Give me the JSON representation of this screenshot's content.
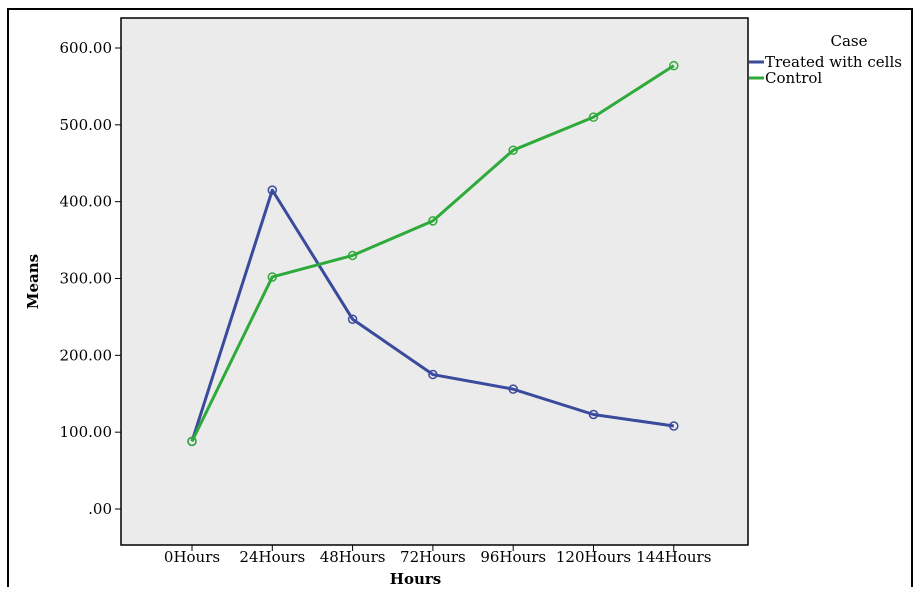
{
  "chart_data": {
    "type": "line",
    "title": "",
    "xlabel": "Hours",
    "ylabel": "Means",
    "categories": [
      "0Hours",
      "24Hours",
      "48Hours",
      "72Hours",
      "96Hours",
      "120Hours",
      "144Hours"
    ],
    "ylim": [
      0,
      600
    ],
    "yticks": [
      0,
      100,
      200,
      300,
      400,
      500,
      600
    ],
    "ytick_labels": [
      ".00",
      "100.00",
      "200.00",
      "300.00",
      "400.00",
      "500.00",
      "600.00"
    ],
    "grid": false,
    "legend": {
      "title": "Case",
      "position": "top-right-outside"
    },
    "series": [
      {
        "name": "Treated with cells",
        "color": "#3a4a9c",
        "values": [
          88,
          415,
          247,
          175,
          156,
          123,
          108
        ]
      },
      {
        "name": "Control",
        "color": "#2eaa3a",
        "values": [
          88,
          302,
          330,
          375,
          467,
          510,
          577
        ]
      }
    ]
  }
}
